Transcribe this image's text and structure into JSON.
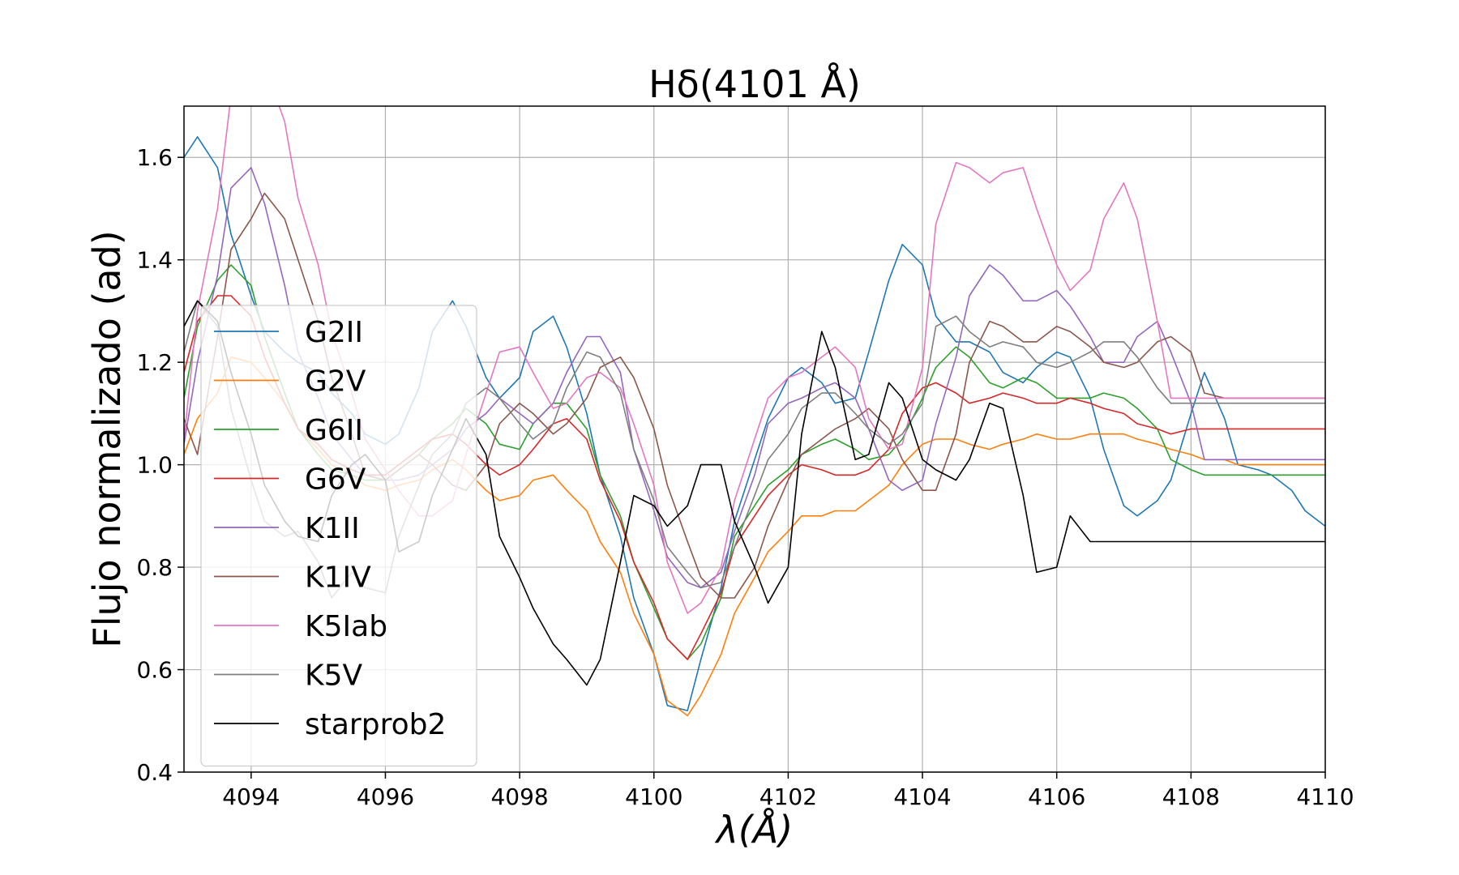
{
  "chart_data": {
    "type": "line",
    "title": "Hδ(4101 Å)",
    "xlabel": "λ(Å)",
    "ylabel": "Flujo normalizado (ad)",
    "xlim": [
      4093,
      4110
    ],
    "ylim": [
      0.4,
      1.7
    ],
    "xticks": [
      4094,
      4096,
      4098,
      4100,
      4102,
      4104,
      4106,
      4108,
      4110
    ],
    "yticks": [
      0.4,
      0.6,
      0.8,
      1.0,
      1.2,
      1.4,
      1.6
    ],
    "ytick_labels": [
      "0.4",
      "0.6",
      "0.8",
      "1.0",
      "1.2",
      "1.4",
      "1.6"
    ],
    "grid": true,
    "legend_position": "center-left",
    "x": [
      4093.0,
      4093.2,
      4093.5,
      4093.7,
      4094.0,
      4094.2,
      4094.5,
      4094.7,
      4095.0,
      4095.2,
      4095.5,
      4095.7,
      4096.0,
      4096.2,
      4096.5,
      4096.7,
      4097.0,
      4097.2,
      4097.5,
      4097.7,
      4098.0,
      4098.2,
      4098.5,
      4098.7,
      4099.0,
      4099.2,
      4099.5,
      4099.7,
      4100.0,
      4100.2,
      4100.5,
      4100.7,
      4101.0,
      4101.2,
      4101.5,
      4101.7,
      4102.0,
      4102.2,
      4102.5,
      4102.7,
      4103.0,
      4103.2,
      4103.5,
      4103.7,
      4104.0,
      4104.2,
      4104.5,
      4104.7,
      4105.0,
      4105.2,
      4105.5,
      4105.7,
      4106.0,
      4106.2,
      4106.5,
      4106.7,
      4107.0,
      4107.2,
      4107.5,
      4107.7,
      4108.0,
      4108.2,
      4108.5,
      4108.7,
      4109.0,
      4109.2,
      4109.5,
      4109.7,
      4110.0
    ],
    "series": [
      {
        "name": "G2II",
        "color": "#1f77b4",
        "values": [
          1.6,
          1.64,
          1.58,
          1.45,
          1.33,
          1.26,
          1.22,
          1.2,
          1.18,
          1.14,
          1.1,
          1.06,
          1.04,
          1.06,
          1.15,
          1.26,
          1.32,
          1.27,
          1.17,
          1.13,
          1.17,
          1.26,
          1.29,
          1.23,
          1.1,
          0.98,
          0.86,
          0.74,
          0.63,
          0.53,
          0.52,
          0.62,
          0.76,
          0.89,
          1.01,
          1.09,
          1.17,
          1.19,
          1.16,
          1.12,
          1.13,
          1.22,
          1.36,
          1.43,
          1.39,
          1.29,
          1.24,
          1.24,
          1.22,
          1.18,
          1.16,
          1.19,
          1.22,
          1.21,
          1.13,
          1.03,
          0.92,
          0.9,
          0.93,
          0.97,
          1.1,
          1.18,
          1.09,
          1.0,
          0.99,
          0.98,
          0.95,
          0.91,
          0.88
        ]
      },
      {
        "name": "G2V",
        "color": "#ff7f0e",
        "values": [
          1.02,
          1.09,
          1.14,
          1.21,
          1.2,
          1.17,
          1.12,
          1.07,
          1.03,
          1.0,
          0.98,
          0.96,
          0.95,
          0.96,
          0.97,
          0.99,
          1.01,
          0.99,
          0.95,
          0.93,
          0.94,
          0.97,
          0.98,
          0.95,
          0.91,
          0.85,
          0.79,
          0.71,
          0.63,
          0.54,
          0.51,
          0.55,
          0.63,
          0.71,
          0.78,
          0.83,
          0.87,
          0.9,
          0.9,
          0.91,
          0.91,
          0.93,
          0.96,
          1.0,
          1.04,
          1.05,
          1.05,
          1.04,
          1.03,
          1.04,
          1.05,
          1.06,
          1.05,
          1.05,
          1.06,
          1.06,
          1.06,
          1.05,
          1.04,
          1.03,
          1.02,
          1.01,
          1.01,
          1.0,
          1.0,
          1.0,
          1.0,
          1.0,
          1.0
        ]
      },
      {
        "name": "G6II",
        "color": "#2ca02c",
        "values": [
          1.13,
          1.27,
          1.36,
          1.39,
          1.35,
          1.25,
          1.14,
          1.07,
          1.02,
          0.99,
          0.98,
          0.97,
          0.97,
          0.99,
          1.02,
          1.05,
          1.08,
          1.11,
          1.08,
          1.04,
          1.03,
          1.08,
          1.12,
          1.12,
          1.07,
          0.98,
          0.9,
          0.81,
          0.72,
          0.66,
          0.62,
          0.65,
          0.74,
          0.86,
          0.92,
          0.96,
          0.99,
          1.02,
          1.04,
          1.05,
          1.03,
          1.01,
          1.02,
          1.05,
          1.13,
          1.19,
          1.23,
          1.21,
          1.16,
          1.15,
          1.17,
          1.16,
          1.13,
          1.13,
          1.13,
          1.14,
          1.13,
          1.11,
          1.07,
          1.01,
          0.99,
          0.98,
          0.98,
          0.98,
          0.98,
          0.98,
          0.98,
          0.98,
          0.98
        ]
      },
      {
        "name": "G6V",
        "color": "#d62728",
        "values": [
          1.18,
          1.28,
          1.33,
          1.33,
          1.29,
          1.21,
          1.12,
          1.07,
          1.04,
          1.01,
          0.99,
          0.98,
          0.98,
          1.0,
          1.03,
          1.05,
          1.06,
          1.04,
          1.0,
          0.98,
          1.0,
          1.03,
          1.08,
          1.09,
          1.05,
          0.97,
          0.89,
          0.81,
          0.73,
          0.66,
          0.62,
          0.67,
          0.75,
          0.84,
          0.9,
          0.94,
          0.98,
          1.0,
          0.99,
          0.98,
          0.98,
          0.99,
          1.03,
          1.1,
          1.15,
          1.16,
          1.14,
          1.12,
          1.13,
          1.14,
          1.13,
          1.12,
          1.12,
          1.13,
          1.12,
          1.11,
          1.1,
          1.08,
          1.07,
          1.06,
          1.07,
          1.07,
          1.07,
          1.07,
          1.07,
          1.07,
          1.07,
          1.07,
          1.07
        ]
      },
      {
        "name": "K1II",
        "color": "#9467bd",
        "values": [
          1.04,
          1.2,
          1.37,
          1.54,
          1.58,
          1.51,
          1.35,
          1.22,
          1.13,
          1.06,
          1.01,
          0.98,
          0.97,
          0.97,
          0.98,
          1.0,
          1.03,
          1.07,
          1.1,
          1.13,
          1.1,
          1.08,
          1.12,
          1.18,
          1.25,
          1.25,
          1.18,
          1.03,
          0.91,
          0.82,
          0.77,
          0.76,
          0.79,
          0.87,
          0.98,
          1.08,
          1.12,
          1.13,
          1.15,
          1.16,
          1.13,
          1.07,
          0.97,
          0.95,
          0.97,
          1.08,
          1.21,
          1.33,
          1.39,
          1.37,
          1.32,
          1.32,
          1.34,
          1.31,
          1.25,
          1.2,
          1.2,
          1.25,
          1.28,
          1.22,
          1.12,
          1.01,
          1.01,
          1.01,
          1.01,
          1.01,
          1.01,
          1.01,
          1.01
        ]
      },
      {
        "name": "K1IV",
        "color": "#8c564b",
        "values": [
          1.09,
          1.02,
          1.25,
          1.42,
          1.48,
          1.53,
          1.48,
          1.4,
          1.28,
          1.17,
          1.06,
          0.98,
          0.97,
          0.99,
          1.02,
          1.0,
          0.96,
          0.95,
          1.0,
          1.08,
          1.12,
          1.1,
          1.06,
          1.08,
          1.13,
          1.19,
          1.21,
          1.17,
          1.07,
          0.96,
          0.85,
          0.78,
          0.74,
          0.74,
          0.8,
          0.88,
          0.97,
          1.02,
          1.05,
          1.07,
          1.09,
          1.11,
          1.07,
          1.01,
          0.95,
          0.95,
          1.06,
          1.2,
          1.28,
          1.27,
          1.24,
          1.24,
          1.27,
          1.26,
          1.23,
          1.2,
          1.19,
          1.2,
          1.24,
          1.25,
          1.22,
          1.14,
          1.13,
          1.13,
          1.13,
          1.13,
          1.13,
          1.13,
          1.13
        ]
      },
      {
        "name": "K5Iab",
        "color": "#e377c2",
        "values": [
          1.05,
          1.3,
          1.5,
          1.72,
          1.86,
          1.78,
          1.67,
          1.52,
          1.39,
          1.26,
          1.14,
          1.05,
          0.99,
          0.95,
          0.9,
          0.9,
          0.93,
          1.02,
          1.14,
          1.22,
          1.23,
          1.18,
          1.11,
          1.12,
          1.17,
          1.18,
          1.15,
          1.08,
          0.96,
          0.81,
          0.71,
          0.73,
          0.8,
          0.93,
          1.05,
          1.13,
          1.17,
          1.18,
          1.21,
          1.23,
          1.19,
          1.09,
          1.03,
          1.04,
          1.19,
          1.47,
          1.59,
          1.58,
          1.55,
          1.57,
          1.58,
          1.5,
          1.39,
          1.34,
          1.38,
          1.48,
          1.55,
          1.48,
          1.28,
          1.13,
          1.13,
          1.13,
          1.13,
          1.13,
          1.13,
          1.13,
          1.13,
          1.13,
          1.13
        ]
      },
      {
        "name": "K5V",
        "color": "#7f7f7f",
        "values": [
          1.22,
          1.32,
          1.27,
          1.11,
          0.97,
          0.89,
          0.86,
          0.87,
          0.81,
          0.74,
          0.79,
          0.76,
          0.75,
          0.86,
          0.96,
          1.02,
          1.06,
          1.12,
          1.15,
          1.13,
          1.08,
          1.05,
          1.08,
          1.15,
          1.22,
          1.21,
          1.14,
          1.03,
          0.93,
          0.84,
          0.79,
          0.76,
          0.77,
          0.84,
          0.94,
          1.01,
          1.06,
          1.11,
          1.14,
          1.14,
          1.1,
          1.07,
          1.04,
          1.06,
          1.12,
          1.27,
          1.29,
          1.26,
          1.23,
          1.24,
          1.23,
          1.2,
          1.19,
          1.2,
          1.22,
          1.24,
          1.24,
          1.21,
          1.15,
          1.12,
          1.12,
          1.12,
          1.12,
          1.12,
          1.12,
          1.12,
          1.12,
          1.12,
          1.12
        ]
      },
      {
        "name": "starprob2",
        "color": "#000000",
        "values": [
          1.27,
          1.32,
          1.28,
          1.18,
          1.06,
          0.96,
          0.89,
          0.86,
          0.85,
          0.94,
          1.0,
          1.02,
          0.97,
          0.83,
          0.85,
          0.94,
          1.03,
          1.09,
          1.02,
          0.86,
          0.78,
          0.72,
          0.65,
          0.62,
          0.57,
          0.62,
          0.81,
          0.94,
          0.92,
          0.88,
          0.92,
          1.0,
          1.0,
          0.89,
          0.8,
          0.73,
          0.8,
          1.06,
          1.26,
          1.19,
          1.01,
          1.02,
          1.16,
          1.13,
          1.01,
          0.99,
          0.97,
          1.01,
          1.12,
          1.11,
          0.94,
          0.79,
          0.8,
          0.9,
          0.85,
          0.85,
          0.85,
          0.85,
          0.85,
          0.85,
          0.85,
          0.85,
          0.85,
          0.85,
          0.85,
          0.85,
          0.85,
          0.85,
          0.85
        ]
      }
    ]
  }
}
